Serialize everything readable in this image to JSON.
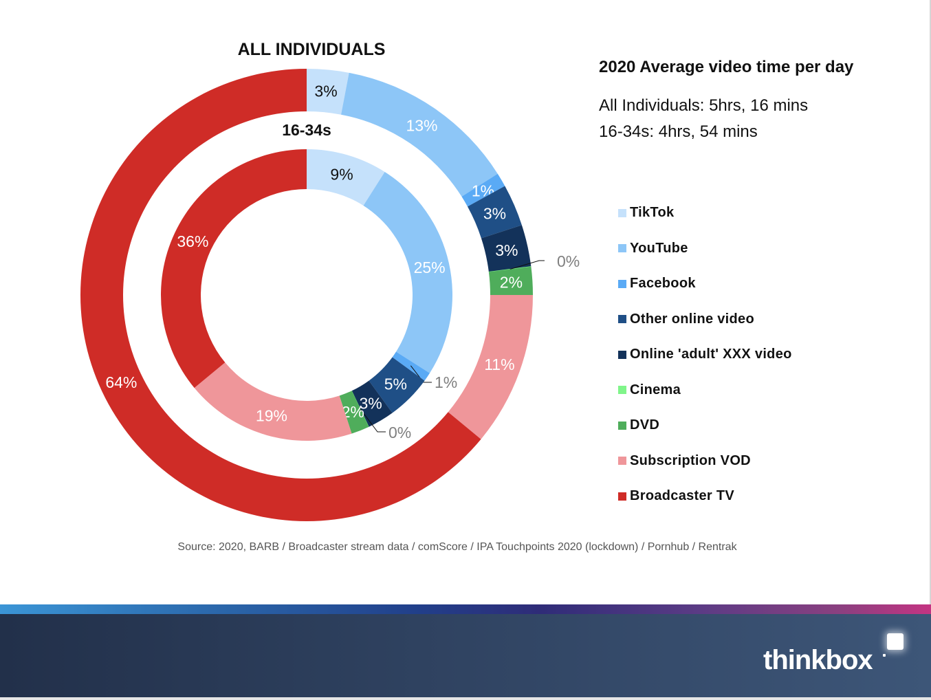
{
  "chart_data": {
    "type": "pie",
    "subtype": "nested-donut",
    "title": "ALL INDIVIDUALS",
    "inner_title": "16-34s",
    "start": "top",
    "direction": "clockwise",
    "categories": [
      "TikTok",
      "YouTube",
      "Facebook",
      "Other online video",
      "Online 'adult' XXX video",
      "Cinema",
      "DVD",
      "Subscription VOD",
      "Broadcaster TV"
    ],
    "colors": [
      "#c5e1fb",
      "#8dc6f7",
      "#5aaaf5",
      "#1f4f86",
      "#13325a",
      "#80f58a",
      "#4fad5b",
      "#ef969a",
      "#cf2c27"
    ],
    "series": [
      {
        "name": "All Individuals",
        "ring": "outer",
        "values": [
          3,
          13,
          1,
          3,
          3,
          0,
          2,
          11,
          64
        ],
        "labels": [
          "3%",
          "13%",
          "1%",
          "3%",
          "3%",
          "0%",
          "2%",
          "11%",
          "64%"
        ]
      },
      {
        "name": "16-34s",
        "ring": "inner",
        "values": [
          9,
          25,
          1,
          5,
          3,
          0,
          2,
          19,
          36
        ],
        "labels": [
          "9%",
          "25%",
          "1%",
          "5%",
          "3%",
          "0%",
          "2%",
          "19%",
          "36%"
        ]
      }
    ],
    "legend_position": "right"
  },
  "info": {
    "title": "2020 Average video time per day",
    "lines": [
      "All Individuals: 5hrs, 16 mins",
      "16-34s: 4hrs, 54 mins"
    ]
  },
  "legend": [
    {
      "label": "TikTok",
      "color": "#c5e1fb"
    },
    {
      "label": "YouTube",
      "color": "#8dc6f7"
    },
    {
      "label": "Facebook",
      "color": "#5aaaf5"
    },
    {
      "label": "Other online video",
      "color": "#1f4f86"
    },
    {
      "label": "Online 'adult' XXX video",
      "color": "#13325a"
    },
    {
      "label": "Cinema",
      "color": "#80f58a"
    },
    {
      "label": "DVD",
      "color": "#4fad5b"
    },
    {
      "label": "Subscription VOD",
      "color": "#ef969a"
    },
    {
      "label": "Broadcaster TV",
      "color": "#cf2c27"
    }
  ],
  "source": "Source: 2020, BARB / Broadcaster stream data / comScore / IPA Touchpoints 2020 (lockdown) / Pornhub  / Rentrak",
  "footer": {
    "logo_text": "thinkbox"
  }
}
